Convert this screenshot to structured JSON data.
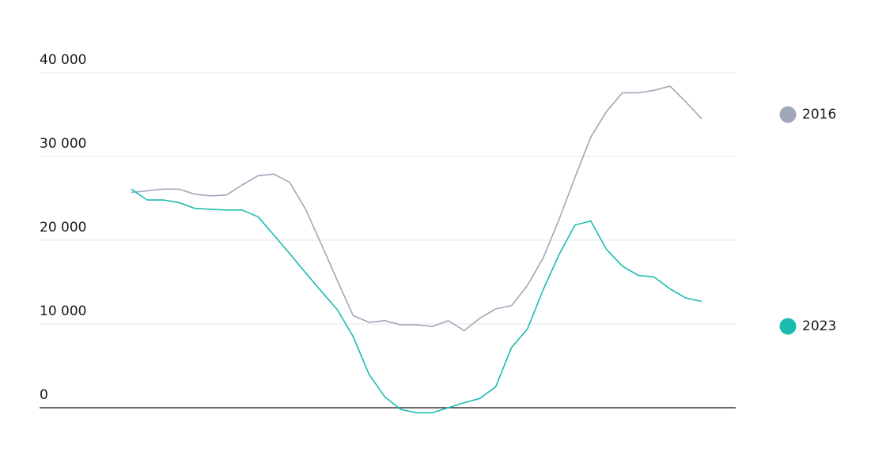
{
  "chart_data": {
    "type": "line",
    "categories": [
      null,
      null,
      null,
      null,
      null,
      null,
      null,
      null,
      null,
      null,
      null,
      null,
      null,
      null,
      null,
      null,
      null,
      null,
      null,
      null,
      null,
      null,
      null,
      null,
      null,
      null,
      null,
      null,
      null,
      null,
      null,
      null,
      null,
      null,
      null,
      null,
      null
    ],
    "series": [
      {
        "name": "2016",
        "color": "#a0a7b8",
        "values": [
          25700,
          25900,
          26100,
          26100,
          25500,
          25300,
          25400,
          26600,
          27700,
          27900,
          26900,
          23700,
          19500,
          15200,
          11000,
          10200,
          10400,
          9900,
          9900,
          9700,
          10400,
          9200,
          10700,
          11800,
          12200,
          14600,
          17900,
          22500,
          27500,
          32300,
          35400,
          37600,
          37600,
          37900,
          38400,
          36500,
          34500
        ]
      },
      {
        "name": "2023",
        "color": "#1abcb0",
        "values": [
          26100,
          24800,
          24800,
          24500,
          23800,
          23700,
          23600,
          23600,
          22800,
          20600,
          18400,
          16100,
          13900,
          11700,
          8500,
          4000,
          1300,
          -200,
          -600,
          -600,
          0,
          600,
          1100,
          2500,
          7200,
          9400,
          14100,
          18300,
          21800,
          22300,
          18900,
          16900,
          15800,
          15600,
          14200,
          13100,
          12700
        ]
      }
    ],
    "ylim": [
      -7000,
      44500
    ],
    "yticks": [
      0,
      {
        "value": 10000,
        "label": "10 000"
      },
      {
        "value": 20000,
        "label": "20 000"
      },
      {
        "value": 30000,
        "label": "30 000"
      },
      {
        "value": 40000,
        "label": "40 000"
      }
    ],
    "grid": true,
    "legend": "right"
  }
}
